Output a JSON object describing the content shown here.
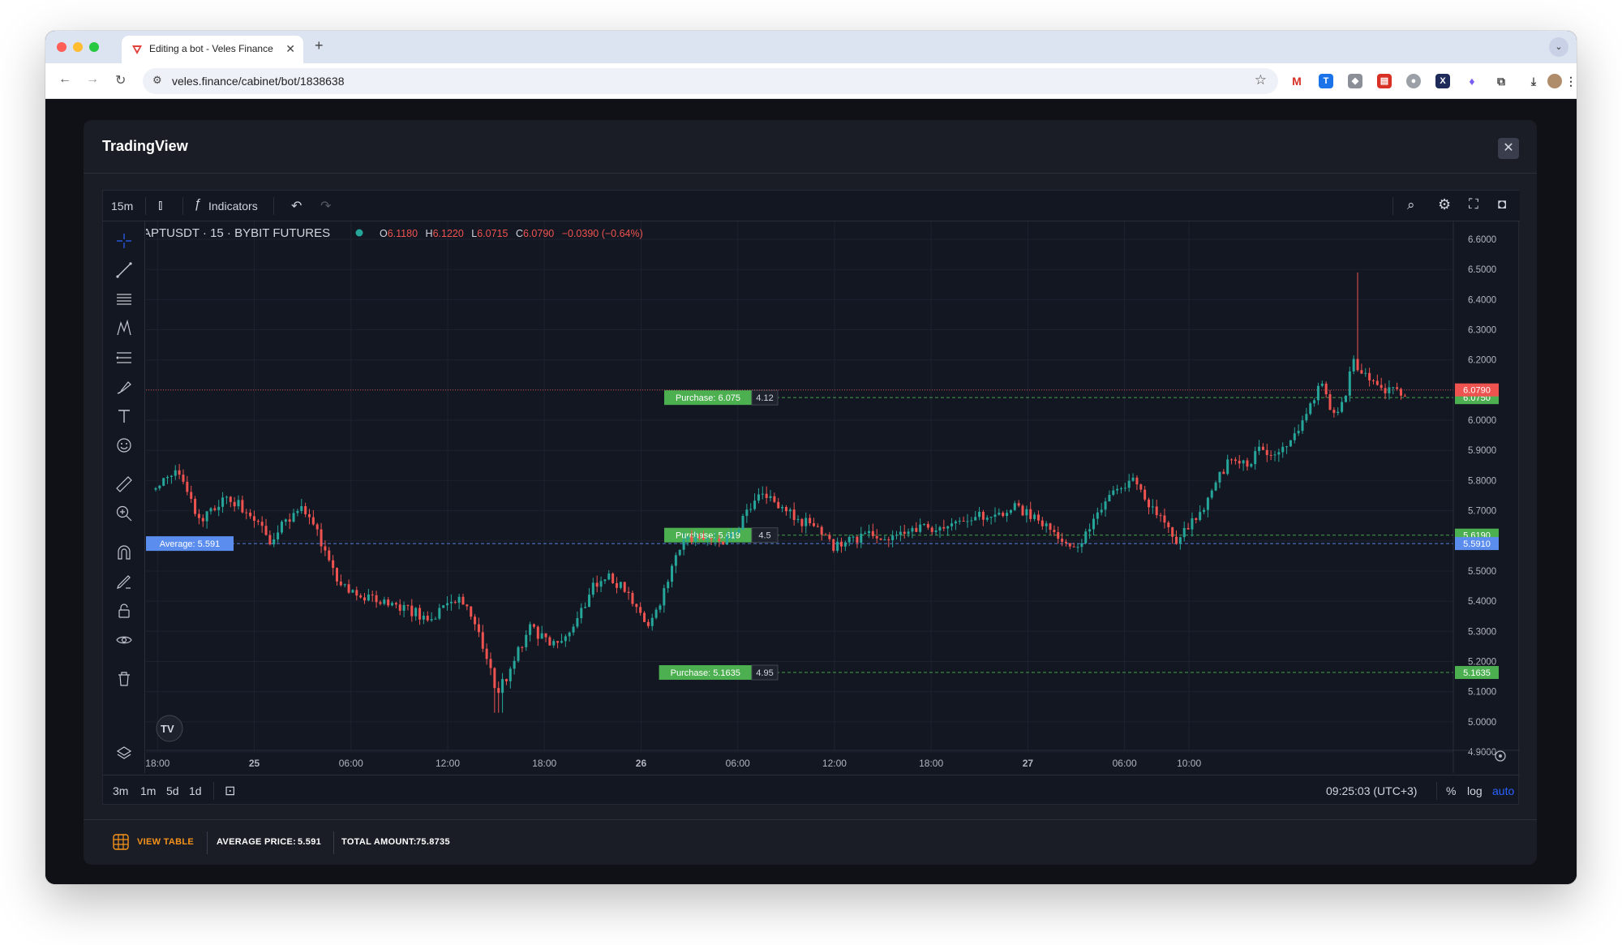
{
  "browser": {
    "tab_title": "Editing a bot - Veles Finance",
    "url": "veles.finance/cabinet/bot/1838638"
  },
  "modal": {
    "title": "TradingView",
    "footer": {
      "view_table": "VIEW TABLE",
      "average_price_label": "AVERAGE PRICE:",
      "average_price_value": "5.591",
      "total_amount_label": "TOTAL AMOUNT:",
      "total_amount_value": "75.8735"
    }
  },
  "tv": {
    "interval": "15m",
    "indicators_label": "Indicators",
    "legend": {
      "symbol": "APTUSDT · 15 · BYBIT FUTURES",
      "o_label": "O",
      "o": "6.1180",
      "h_label": "H",
      "h": "6.1220",
      "l_label": "L",
      "l": "6.0715",
      "c_label": "C",
      "c": "6.0790",
      "change": "−0.0390 (−0.64%)"
    },
    "ranges": [
      "3m",
      "1m",
      "5d",
      "1d"
    ],
    "clock": "09:25:03 (UTC+3)",
    "percent_label": "%",
    "log_label": "log",
    "auto_label": "auto",
    "colors": {
      "up": "#26a69a",
      "down": "#ef5350",
      "bg": "#131722",
      "purchase": "#4caf50",
      "average": "#5b8def"
    }
  },
  "chart_data": {
    "type": "candlestick",
    "title": "APTUSDT · 15 · BYBIT FUTURES",
    "x_tick_labels": [
      "18:00",
      "25",
      "06:00",
      "12:00",
      "18:00",
      "26",
      "06:00",
      "12:00",
      "18:00",
      "27",
      "06:00",
      "10:00"
    ],
    "y_tick_labels": [
      "6.6000",
      "6.5000",
      "6.4000",
      "6.3000",
      "6.2000",
      "6.1000",
      "6.0000",
      "5.9000",
      "5.8000",
      "5.7000",
      "5.6000",
      "5.5000",
      "5.4000",
      "5.3000",
      "5.2000",
      "5.1000",
      "5.0000",
      "4.9000"
    ],
    "ylim": [
      4.9,
      6.6
    ],
    "price_path": [
      [
        24.74,
        5.77
      ],
      [
        24.77,
        5.8
      ],
      [
        24.8,
        5.83
      ],
      [
        24.83,
        5.75
      ],
      [
        24.86,
        5.66
      ],
      [
        24.89,
        5.71
      ],
      [
        24.92,
        5.73
      ],
      [
        24.95,
        5.73
      ],
      [
        24.99,
        5.68
      ],
      [
        25.02,
        5.65
      ],
      [
        25.04,
        5.58
      ],
      [
        25.06,
        5.64
      ],
      [
        25.09,
        5.68
      ],
      [
        25.12,
        5.7
      ],
      [
        25.15,
        5.67
      ],
      [
        25.17,
        5.61
      ],
      [
        25.2,
        5.5
      ],
      [
        25.24,
        5.43
      ],
      [
        25.28,
        5.41
      ],
      [
        25.33,
        5.4
      ],
      [
        25.37,
        5.38
      ],
      [
        25.42,
        5.36
      ],
      [
        25.45,
        5.33
      ],
      [
        25.49,
        5.38
      ],
      [
        25.53,
        5.41
      ],
      [
        25.57,
        5.33
      ],
      [
        25.6,
        5.2
      ],
      [
        25.63,
        5.1
      ],
      [
        25.67,
        5.19
      ],
      [
        25.71,
        5.32
      ],
      [
        25.75,
        5.27
      ],
      [
        25.79,
        5.25
      ],
      [
        25.83,
        5.32
      ],
      [
        25.87,
        5.44
      ],
      [
        25.91,
        5.48
      ],
      [
        25.95,
        5.45
      ],
      [
        25.99,
        5.37
      ],
      [
        26.02,
        5.3
      ],
      [
        26.06,
        5.43
      ],
      [
        26.1,
        5.58
      ],
      [
        26.14,
        5.62
      ],
      [
        26.18,
        5.61
      ],
      [
        26.22,
        5.6
      ],
      [
        26.26,
        5.66
      ],
      [
        26.3,
        5.75
      ],
      [
        26.34,
        5.73
      ],
      [
        26.38,
        5.7
      ],
      [
        26.42,
        5.66
      ],
      [
        26.46,
        5.65
      ],
      [
        26.5,
        5.58
      ],
      [
        26.54,
        5.6
      ],
      [
        26.58,
        5.62
      ],
      [
        26.62,
        5.6
      ],
      [
        26.66,
        5.63
      ],
      [
        26.7,
        5.65
      ],
      [
        26.74,
        5.64
      ],
      [
        26.8,
        5.65
      ],
      [
        26.86,
        5.68
      ],
      [
        26.92,
        5.69
      ],
      [
        26.97,
        5.71
      ],
      [
        27.01,
        5.68
      ],
      [
        27.05,
        5.64
      ],
      [
        27.09,
        5.6
      ],
      [
        27.12,
        5.58
      ],
      [
        27.16,
        5.64
      ],
      [
        27.2,
        5.74
      ],
      [
        27.24,
        5.79
      ],
      [
        27.28,
        5.8
      ],
      [
        27.31,
        5.73
      ],
      [
        27.35,
        5.68
      ],
      [
        27.38,
        5.6
      ],
      [
        27.41,
        5.64
      ],
      [
        27.45,
        5.7
      ],
      [
        27.49,
        5.8
      ],
      [
        27.53,
        5.88
      ],
      [
        27.57,
        5.86
      ],
      [
        27.6,
        5.9
      ],
      [
        27.64,
        5.88
      ],
      [
        27.67,
        5.92
      ],
      [
        27.7,
        5.98
      ],
      [
        27.73,
        6.05
      ],
      [
        27.76,
        6.12
      ],
      [
        27.78,
        6.05
      ],
      [
        27.8,
        6.02
      ],
      [
        27.82,
        6.08
      ],
      [
        27.84,
        6.2
      ],
      [
        27.86,
        6.16
      ],
      [
        27.89,
        6.12
      ],
      [
        27.92,
        6.1
      ],
      [
        27.95,
        6.11
      ],
      [
        27.98,
        6.079
      ]
    ],
    "series": [
      {
        "name": "Purchase: 6.075",
        "value": 6.075,
        "amount": "4.12",
        "label": "Purchase: 6.075",
        "axis_label": "6.0750"
      },
      {
        "name": "Purchase: 5.619",
        "value": 5.619,
        "amount": "4.5",
        "label": "Purchase: 5.619",
        "axis_label": "5.6190"
      },
      {
        "name": "Purchase: 5.1635",
        "value": 5.1635,
        "amount": "4.95",
        "label": "Purchase: 5.1635",
        "axis_label": "5.1635"
      },
      {
        "name": "Average: 5.591",
        "value": 5.591,
        "label": "Average: 5.591",
        "axis_label": "5.5910"
      }
    ],
    "last_price": {
      "value": 6.079,
      "axis_label": "6.0790"
    }
  }
}
